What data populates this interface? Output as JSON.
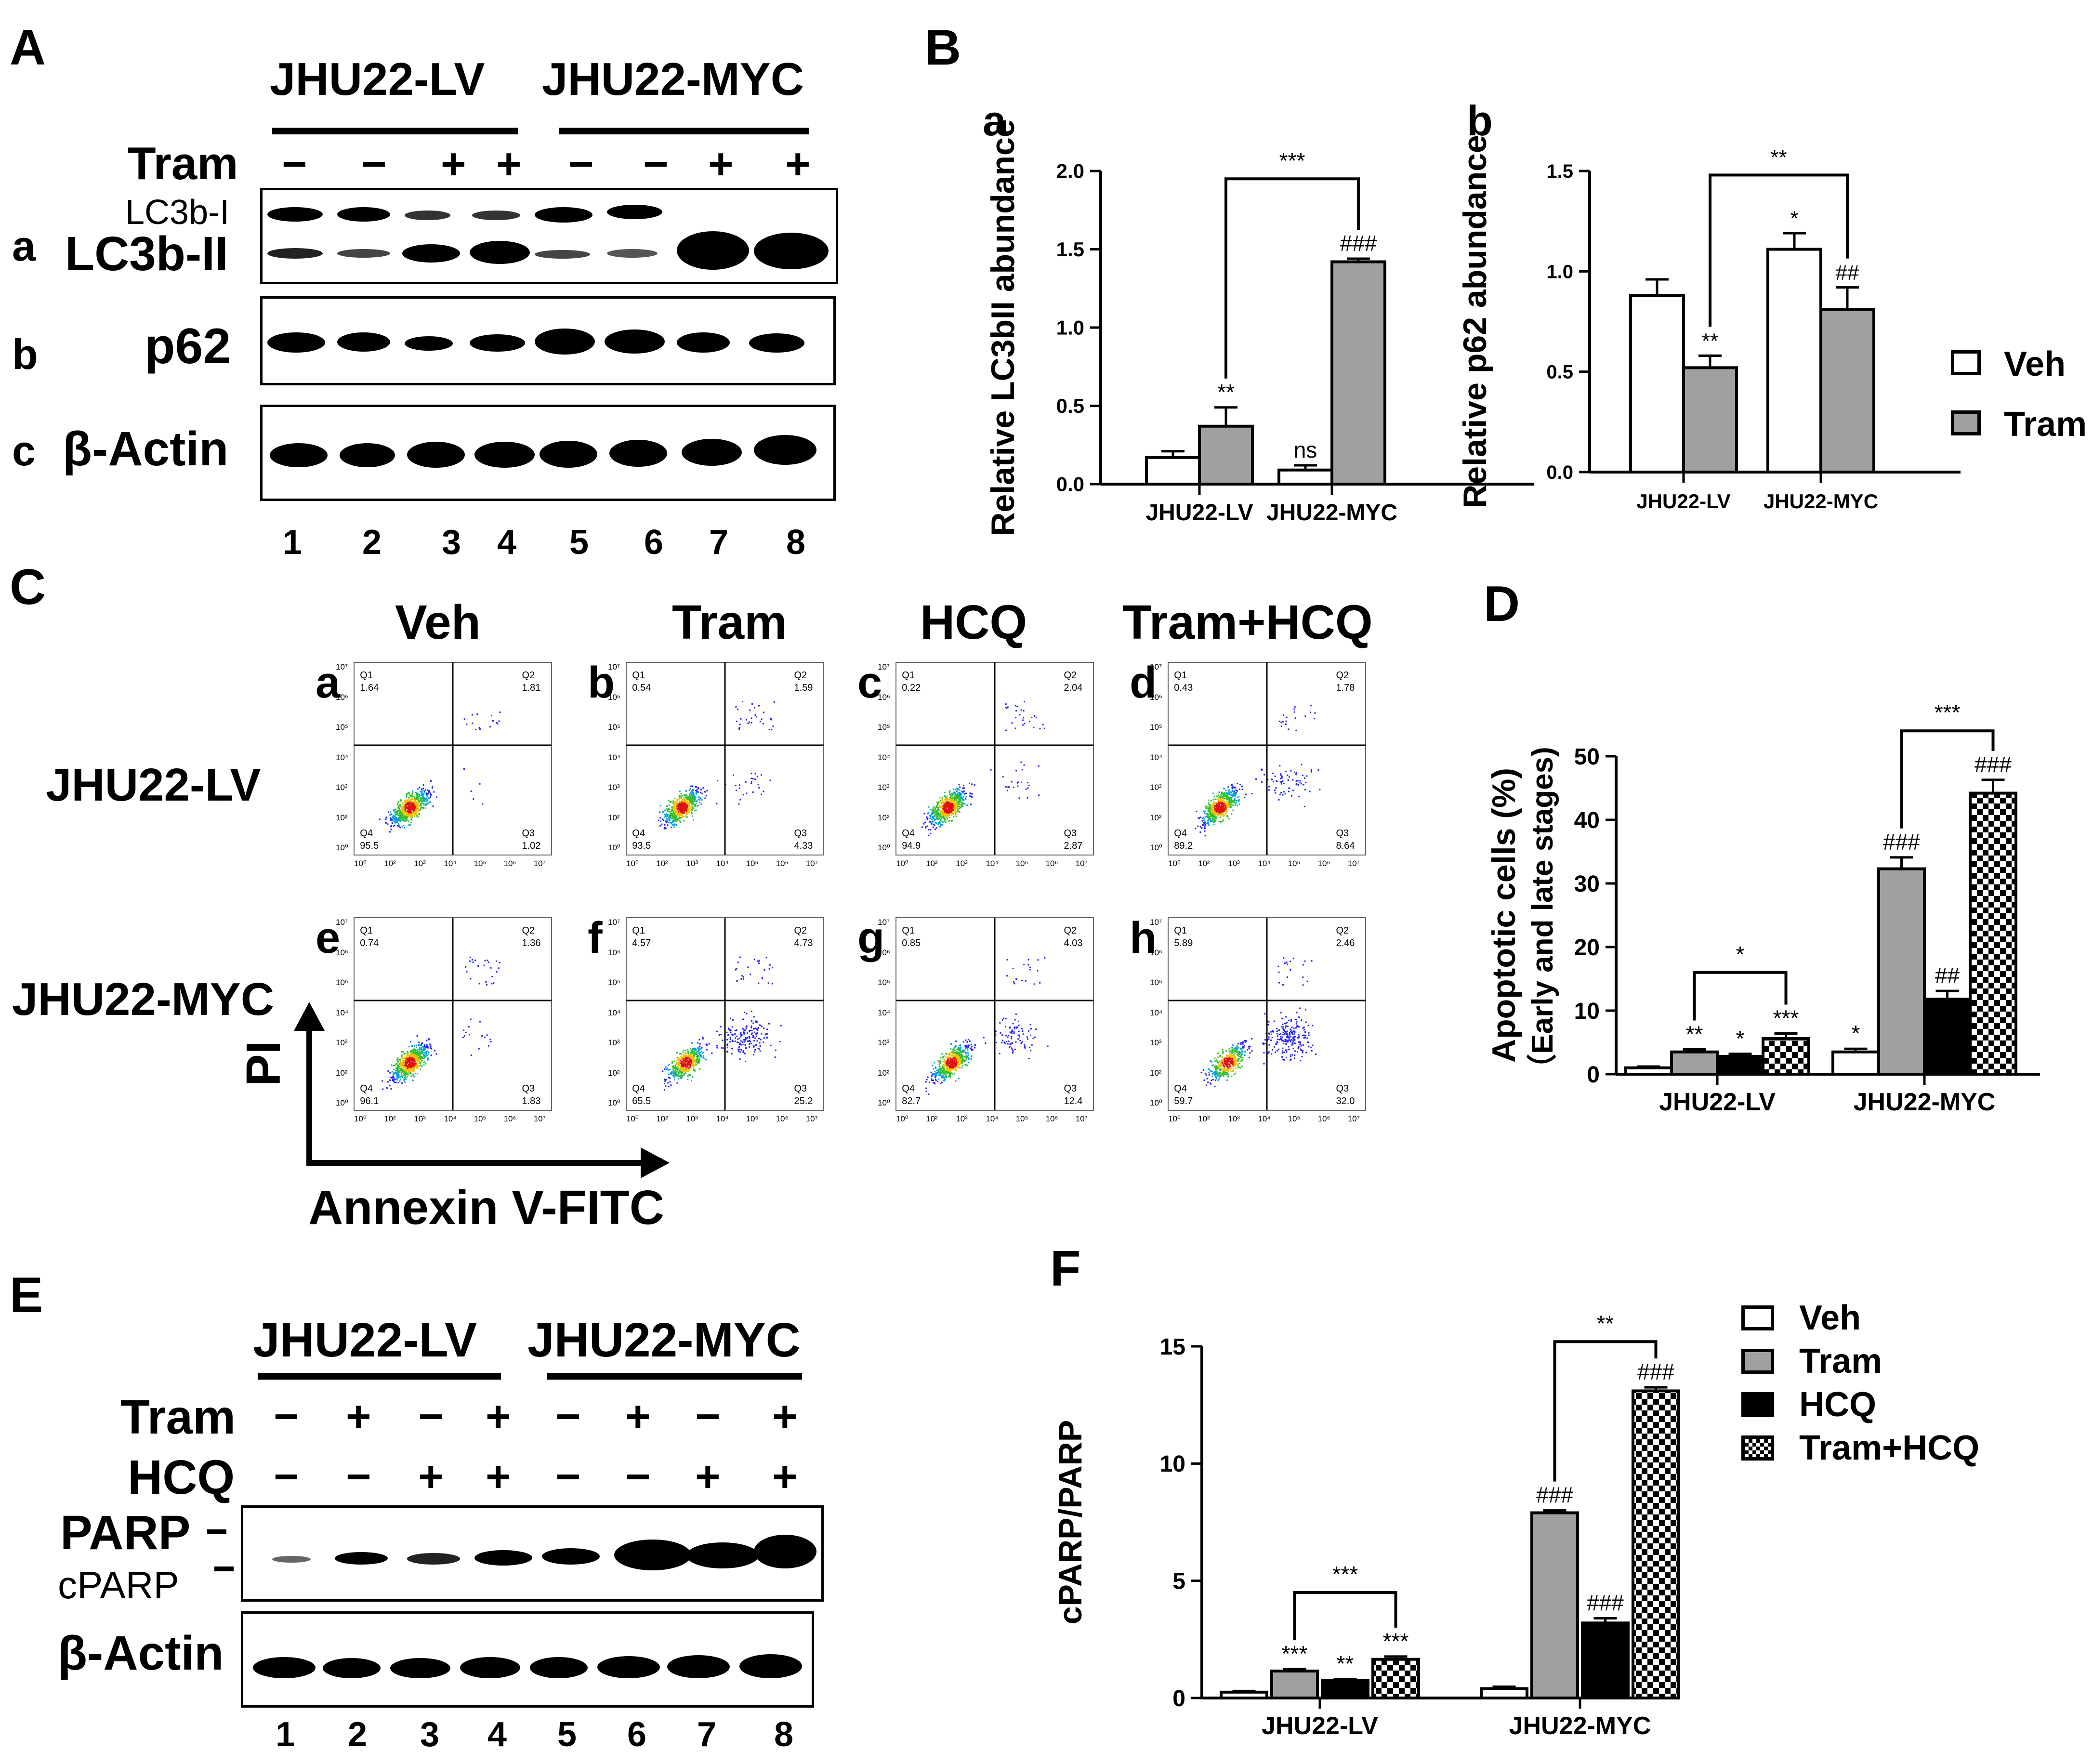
{
  "panels": {
    "A": {
      "letter": "A",
      "lines": [
        "JHU22-LV",
        "JHU22-MYC"
      ],
      "tram_label": "Tram",
      "tram_signs": [
        "−",
        "−",
        "+",
        "+",
        "−",
        "−",
        "+",
        "+"
      ],
      "row_letters": [
        "a",
        "b",
        "c"
      ],
      "lc3_i": "LC3b-I",
      "lc3_ii": "LC3b-II",
      "p62": "p62",
      "actin": "β-Actin",
      "lanes": [
        "1",
        "2",
        "3",
        "4",
        "5",
        "6",
        "7",
        "8"
      ]
    },
    "B": {
      "letter": "B",
      "sub_a": "a",
      "sub_b": "b",
      "legend": [
        "Veh",
        "Tram"
      ]
    },
    "C": {
      "letter": "C",
      "columns": [
        "Veh",
        "Tram",
        "HCQ",
        "Tram+HCQ"
      ],
      "rows": [
        "JHU22-LV",
        "JHU22-MYC"
      ],
      "sub_letters": [
        "a",
        "b",
        "c",
        "d",
        "e",
        "f",
        "g",
        "h"
      ],
      "y_axis": "PI",
      "x_axis": "Annexin V-FITC",
      "quadrant_names": [
        "Q1",
        "Q2",
        "Q3",
        "Q4"
      ],
      "quadrants": [
        [
          "1.64",
          "1.81",
          "1.02",
          "95.5"
        ],
        [
          "0.54",
          "1.59",
          "4.33",
          "93.5"
        ],
        [
          "0.22",
          "2.04",
          "2.87",
          "94.9"
        ],
        [
          "0.43",
          "1.78",
          "8.64",
          "89.2"
        ],
        [
          "0.74",
          "1.36",
          "1.83",
          "96.1"
        ],
        [
          "4.57",
          "4.73",
          "25.2",
          "65.5"
        ],
        [
          "0.85",
          "4.03",
          "12.4",
          "82.7"
        ],
        [
          "5.89",
          "2.46",
          "32.0",
          "59.7"
        ]
      ],
      "ticks_y": [
        "10⁷",
        "10⁶",
        "10⁵",
        "10⁴",
        "10³",
        "10²",
        "10⁰"
      ],
      "ticks_x": [
        "10⁰",
        "10²",
        "10³",
        "10⁴",
        "10⁵",
        "10⁶",
        "10⁷"
      ]
    },
    "D": {
      "letter": "D"
    },
    "E": {
      "letter": "E",
      "lines": [
        "JHU22-LV",
        "JHU22-MYC"
      ],
      "tram_label": "Tram",
      "hcq_label": "HCQ",
      "tram_signs": [
        "−",
        "+",
        "−",
        "+",
        "−",
        "+",
        "−",
        "+"
      ],
      "hcq_signs": [
        "−",
        "−",
        "+",
        "+",
        "−",
        "−",
        "+",
        "+"
      ],
      "parp": "PARP",
      "cparp": "cPARP",
      "actin": "β-Actin",
      "lanes": [
        "1",
        "2",
        "3",
        "4",
        "5",
        "6",
        "7",
        "8"
      ]
    },
    "F": {
      "letter": "F",
      "legend": [
        "Veh",
        "Tram",
        "HCQ",
        "Tram+HCQ"
      ]
    }
  },
  "colors": {
    "veh": "#ffffff",
    "tram": "#a0a0a0",
    "hcq": "#000000",
    "combo": "checker"
  },
  "chart_data": [
    {
      "id": "B-a",
      "type": "bar",
      "ylabel": "Relative LC3bII abundance",
      "categories": [
        "JHU22-LV",
        "JHU22-MYC"
      ],
      "ylim": [
        0,
        2.0
      ],
      "yticks": [
        "0.0",
        "0.5",
        "1.0",
        "1.5",
        "2.0"
      ],
      "series": [
        {
          "name": "Veh",
          "values": [
            0.17,
            0.09
          ],
          "err": [
            0.04,
            0.03
          ]
        },
        {
          "name": "Tram",
          "values": [
            0.37,
            1.42
          ],
          "err": [
            0.12,
            0.02
          ]
        }
      ],
      "annotations": [
        {
          "series": 1,
          "cat": 0,
          "text": "**"
        },
        {
          "series": 0,
          "cat": 1,
          "text": "ns"
        },
        {
          "series": 1,
          "cat": 1,
          "text": "###"
        }
      ],
      "brackets": [
        {
          "text": "***",
          "from": [
            1,
            0
          ],
          "to": [
            1,
            1
          ],
          "level": 1.95
        }
      ]
    },
    {
      "id": "B-b",
      "type": "bar",
      "ylabel": "Relative p62 abundance",
      "categories": [
        "JHU22-LV",
        "JHU22-MYC"
      ],
      "ylim": [
        0,
        1.5
      ],
      "yticks": [
        "0.0",
        "0.5",
        "1.0",
        "1.5"
      ],
      "series": [
        {
          "name": "Veh",
          "values": [
            0.88,
            1.11
          ],
          "err": [
            0.08,
            0.08
          ]
        },
        {
          "name": "Tram",
          "values": [
            0.52,
            0.81
          ],
          "err": [
            0.06,
            0.11
          ]
        }
      ],
      "annotations": [
        {
          "series": 1,
          "cat": 0,
          "text": "**"
        },
        {
          "series": 0,
          "cat": 1,
          "text": "*"
        },
        {
          "series": 1,
          "cat": 1,
          "text": "##"
        }
      ],
      "brackets": [
        {
          "text": "**",
          "from": [
            1,
            0
          ],
          "to": [
            1,
            1
          ],
          "level": 1.48
        }
      ]
    },
    {
      "id": "D",
      "type": "bar",
      "ylabel": "Apoptotic cells (%)",
      "ylabel2": "（Early and late stages)",
      "categories": [
        "JHU22-LV",
        "JHU22-MYC"
      ],
      "ylim": [
        0,
        50
      ],
      "yticks": [
        "0",
        "10",
        "20",
        "30",
        "40",
        "50"
      ],
      "series": [
        {
          "name": "Veh",
          "values": [
            1.0,
            3.5
          ],
          "err": [
            0.2,
            0.5
          ]
        },
        {
          "name": "Tram",
          "values": [
            3.5,
            32.3
          ],
          "err": [
            0.4,
            1.8
          ]
        },
        {
          "name": "HCQ",
          "values": [
            2.8,
            11.8
          ],
          "err": [
            0.4,
            1.3
          ]
        },
        {
          "name": "Tram+HCQ",
          "values": [
            5.6,
            44.2
          ],
          "err": [
            0.8,
            2.1
          ]
        }
      ],
      "annotations": [
        {
          "series": 1,
          "cat": 0,
          "text": "**"
        },
        {
          "series": 2,
          "cat": 0,
          "text": "*"
        },
        {
          "series": 3,
          "cat": 0,
          "text": "***"
        },
        {
          "series": 0,
          "cat": 1,
          "text": "*"
        },
        {
          "series": 1,
          "cat": 1,
          "text": "###"
        },
        {
          "series": 2,
          "cat": 1,
          "text": "##"
        },
        {
          "series": 3,
          "cat": 1,
          "text": "###"
        }
      ],
      "brackets": [
        {
          "text": "*",
          "from": [
            1,
            0
          ],
          "to": [
            3,
            0
          ],
          "level": 16
        },
        {
          "text": "***",
          "from": [
            1,
            1
          ],
          "to": [
            3,
            1
          ],
          "level": 54
        }
      ]
    },
    {
      "id": "F",
      "type": "bar",
      "ylabel": "cPARP/PARP",
      "categories": [
        "JHU22-LV",
        "JHU22-MYC"
      ],
      "ylim": [
        0,
        15
      ],
      "yticks": [
        "0",
        "5",
        "10",
        "15"
      ],
      "series": [
        {
          "name": "Veh",
          "values": [
            0.25,
            0.4
          ],
          "err": [
            0.05,
            0.08
          ]
        },
        {
          "name": "Tram",
          "values": [
            1.15,
            7.9
          ],
          "err": [
            0.08,
            0.1
          ]
        },
        {
          "name": "HCQ",
          "values": [
            0.75,
            3.2
          ],
          "err": [
            0.06,
            0.2
          ]
        },
        {
          "name": "Tram+HCQ",
          "values": [
            1.65,
            13.1
          ],
          "err": [
            0.12,
            0.15
          ]
        }
      ],
      "annotations": [
        {
          "series": 1,
          "cat": 0,
          "text": "***"
        },
        {
          "series": 2,
          "cat": 0,
          "text": "**"
        },
        {
          "series": 3,
          "cat": 0,
          "text": "***"
        },
        {
          "series": 1,
          "cat": 1,
          "text": "###"
        },
        {
          "series": 2,
          "cat": 1,
          "text": "###"
        },
        {
          "series": 3,
          "cat": 1,
          "text": "###"
        }
      ],
      "brackets": [
        {
          "text": "***",
          "from": [
            1,
            0
          ],
          "to": [
            3,
            0
          ],
          "level": 4.5
        },
        {
          "text": "**",
          "from": [
            1,
            1
          ],
          "to": [
            3,
            1
          ],
          "level": 15.2
        }
      ]
    }
  ]
}
